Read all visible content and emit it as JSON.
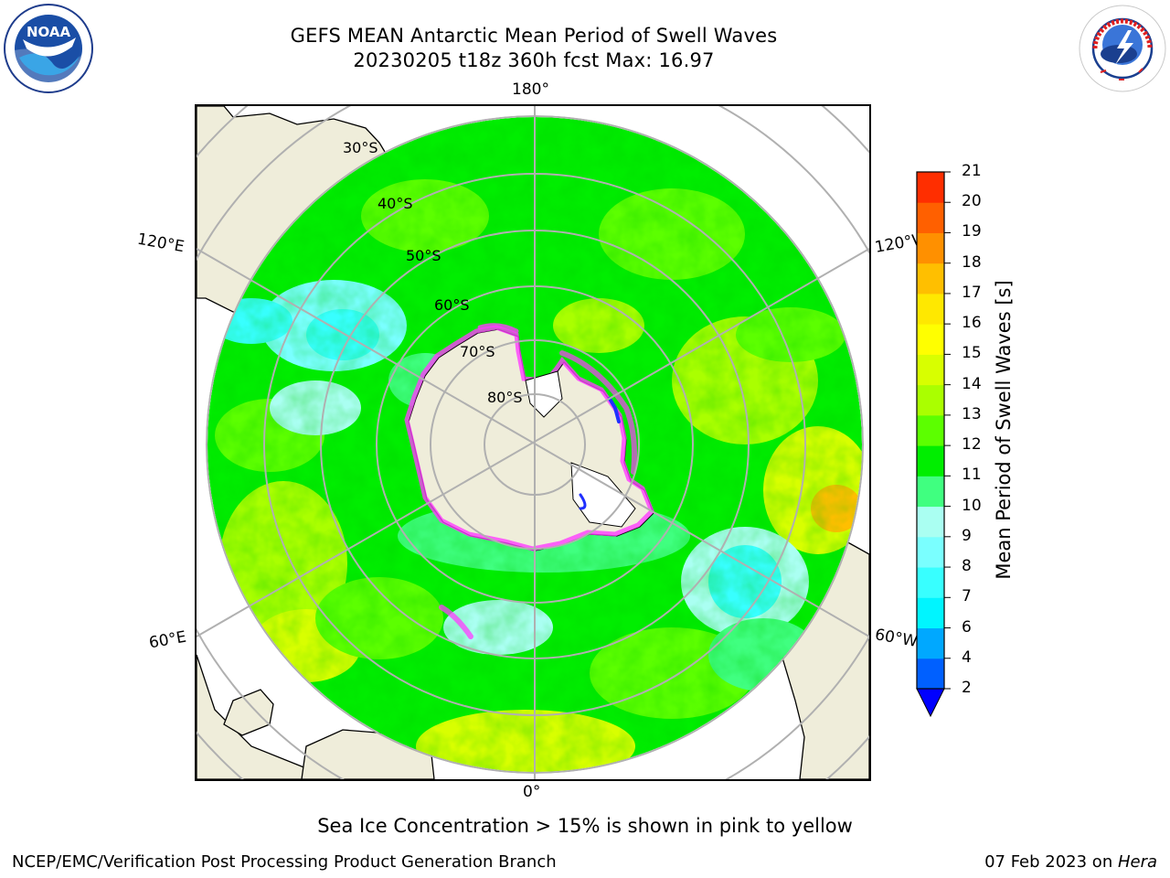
{
  "header": {
    "title_line1": "GEFS MEAN Antarctic Mean Period of Swell Waves",
    "title_line2": "20230205 t18z 360h fcst   Max: 16.97"
  },
  "logos": {
    "left": "NOAA",
    "right": "NATIONAL WEATHER SERVICE"
  },
  "map": {
    "projection": "south-polar-stereographic",
    "longitude_labels": {
      "top": "180°",
      "bottom": "0°",
      "upper_left": "120°E",
      "upper_right": "120°W",
      "lower_left": "60°E",
      "lower_right": "60°W"
    },
    "latitude_labels": [
      "30°S",
      "40°S",
      "50°S",
      "60°S",
      "70°S",
      "80°S"
    ],
    "colors": {
      "land": "#efedda",
      "gridline": "#b0b0b0",
      "ice_edge": "#ff3cff"
    }
  },
  "colorbar": {
    "label": "Mean Period of Swell Waves [s]",
    "ticks": [
      "2",
      "4",
      "6",
      "7",
      "8",
      "9",
      "10",
      "11",
      "12",
      "13",
      "14",
      "15",
      "16",
      "17",
      "18",
      "19",
      "20",
      "21"
    ],
    "colors": [
      "#0060ff",
      "#00a8ff",
      "#00f5ff",
      "#38ffff",
      "#7affff",
      "#aafff2",
      "#40ff80",
      "#00ee00",
      "#5cff00",
      "#aaff00",
      "#d8ff00",
      "#ffff00",
      "#ffe800",
      "#ffbf00",
      "#ff9000",
      "#ff6000",
      "#ff2e00",
      "#ff0000"
    ],
    "extend_color": "#0000ff"
  },
  "footnote": "Sea Ice Concentration > 15% is shown in pink to yellow",
  "footer": {
    "left": "NCEP/EMC/Verification Post Processing Product Generation Branch",
    "right_date": "07 Feb 2023 on ",
    "right_system": "Hera"
  }
}
